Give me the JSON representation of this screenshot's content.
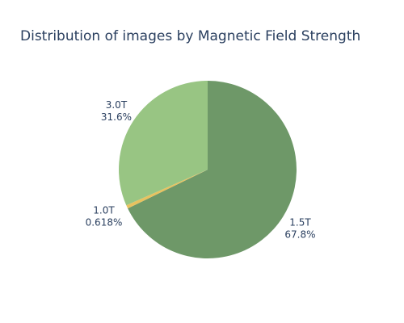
{
  "chart_data": {
    "type": "pie",
    "title": "Distribution of images by Magnetic Field Strength",
    "slices": [
      {
        "label": "1.5T",
        "value": 67.8,
        "percent_label": "67.8%",
        "color": "#6e9868"
      },
      {
        "label": "1.0T",
        "value": 0.618,
        "percent_label": "0.618%",
        "color": "#e8c25f"
      },
      {
        "label": "3.0T",
        "value": 31.6,
        "percent_label": "31.6%",
        "color": "#98c583"
      }
    ],
    "legend": "none"
  }
}
